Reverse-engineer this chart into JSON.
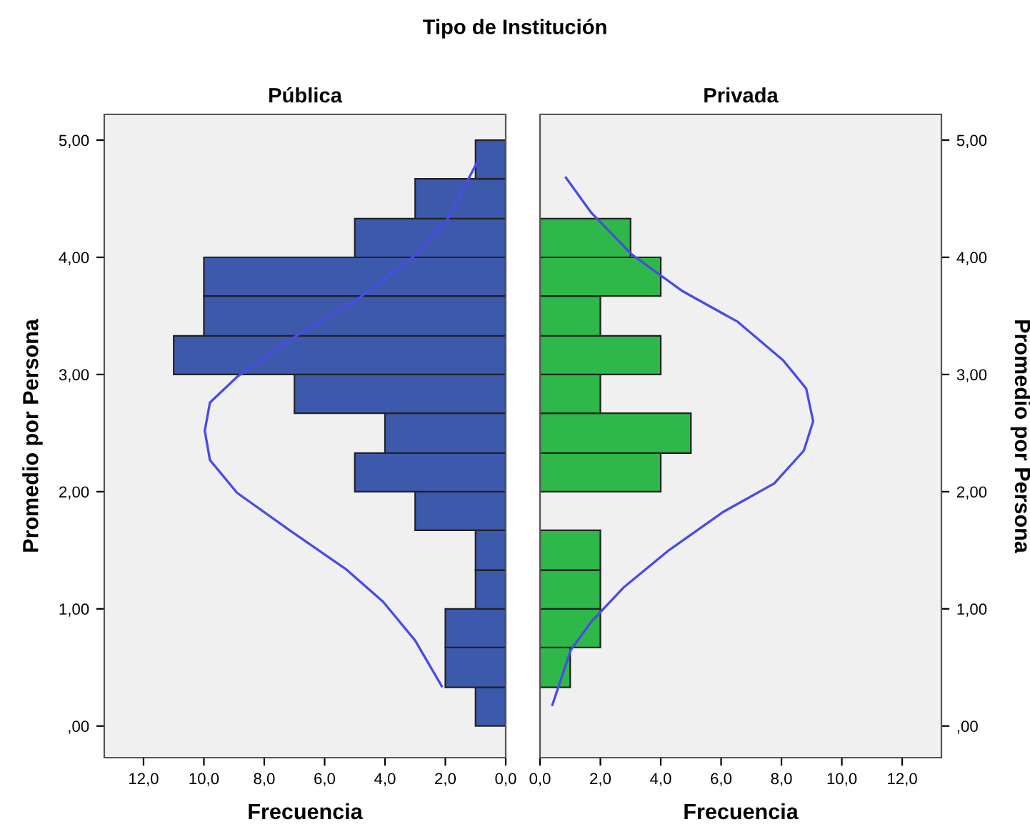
{
  "chart_data": [
    {
      "type": "histogram",
      "orientation": "horizontal",
      "title": "Pública",
      "xlabel": "Frecuencia",
      "ylabel": "Promedio por Persona",
      "annotations": [
        "Tipo de Institución"
      ],
      "bins": [
        0,
        0.33,
        0.67,
        1,
        1.33,
        1.67,
        2,
        2.33,
        2.67,
        3,
        3.33,
        3.67,
        4,
        4.33,
        4.67,
        5
      ],
      "values": [
        1,
        2,
        2,
        1,
        1,
        3,
        5,
        4,
        7,
        11,
        10,
        10,
        5,
        3,
        1
      ],
      "color": "#3d59ab",
      "series": [
        {
          "type": "line",
          "color": "#4b4be6",
          "x": [
            0.34,
            0.73,
            1.06,
            1.34,
            1.66,
            1.99,
            2.27,
            2.52,
            2.76,
            2.98,
            3.33,
            3.63,
            4.0,
            4.32,
            4.83
          ],
          "values": [
            2.12,
            3.0,
            4.06,
            5.3,
            7.1,
            8.9,
            9.8,
            9.97,
            9.8,
            8.9,
            6.94,
            4.97,
            3.08,
            1.94,
            0.91
          ]
        }
      ],
      "xlim": [
        13.3,
        0
      ],
      "xticks": [
        {
          "value": 12,
          "label": "12,0"
        },
        {
          "value": 10,
          "label": "10,0"
        },
        {
          "value": 8,
          "label": "8,0"
        },
        {
          "value": 6,
          "label": "6,0"
        },
        {
          "value": 4,
          "label": "4,0"
        },
        {
          "value": 2,
          "label": "2,0"
        },
        {
          "value": 0,
          "label": "0,0"
        }
      ],
      "ylim": [
        -0.27,
        5.22
      ],
      "yticks": [
        {
          "value": 0,
          "label": ",00"
        },
        {
          "value": 1,
          "label": "1,00"
        },
        {
          "value": 2,
          "label": "2,00"
        },
        {
          "value": 3,
          "label": "3,00"
        },
        {
          "value": 4,
          "label": "4,00"
        },
        {
          "value": 5,
          "label": "5,00"
        }
      ],
      "grid": false,
      "legend": false
    },
    {
      "type": "histogram",
      "orientation": "horizontal",
      "title": "Privada",
      "xlabel": "Frecuencia",
      "ylabel": "Promedio por Persona",
      "bins": [
        0.33,
        0.67,
        1,
        1.33,
        1.67,
        2,
        2.33,
        2.67,
        3,
        3.33,
        3.67,
        4,
        4.33
      ],
      "values": [
        1,
        2,
        2,
        2,
        0,
        4,
        5,
        2,
        4,
        2,
        4,
        3
      ],
      "color": "#2eb84a",
      "series": [
        {
          "type": "line",
          "color": "#4b4be6",
          "x": [
            0.18,
            0.65,
            0.89,
            1.18,
            1.5,
            1.83,
            2.07,
            2.35,
            2.6,
            2.88,
            3.12,
            3.45,
            3.71,
            4.02,
            4.38,
            4.68
          ],
          "values": [
            0.41,
            1.02,
            1.7,
            2.76,
            4.27,
            6.09,
            7.76,
            8.74,
            9.05,
            8.82,
            8.06,
            6.55,
            4.73,
            3.06,
            1.7,
            0.86
          ]
        }
      ],
      "xlim": [
        0,
        13.3
      ],
      "xticks": [
        {
          "value": 0,
          "label": "0,0"
        },
        {
          "value": 2,
          "label": "2,0"
        },
        {
          "value": 4,
          "label": "4,0"
        },
        {
          "value": 6,
          "label": "6,0"
        },
        {
          "value": 8,
          "label": "8,0"
        },
        {
          "value": 10,
          "label": "10,0"
        },
        {
          "value": 12,
          "label": "12,0"
        }
      ],
      "ylim": [
        -0.27,
        5.22
      ],
      "yticks": [
        {
          "value": 0,
          "label": ",00"
        },
        {
          "value": 1,
          "label": "1,00"
        },
        {
          "value": 2,
          "label": "2,00"
        },
        {
          "value": 3,
          "label": "3,00"
        },
        {
          "value": 4,
          "label": "4,00"
        },
        {
          "value": 5,
          "label": "5,00"
        }
      ],
      "grid": false,
      "legend": false
    }
  ]
}
